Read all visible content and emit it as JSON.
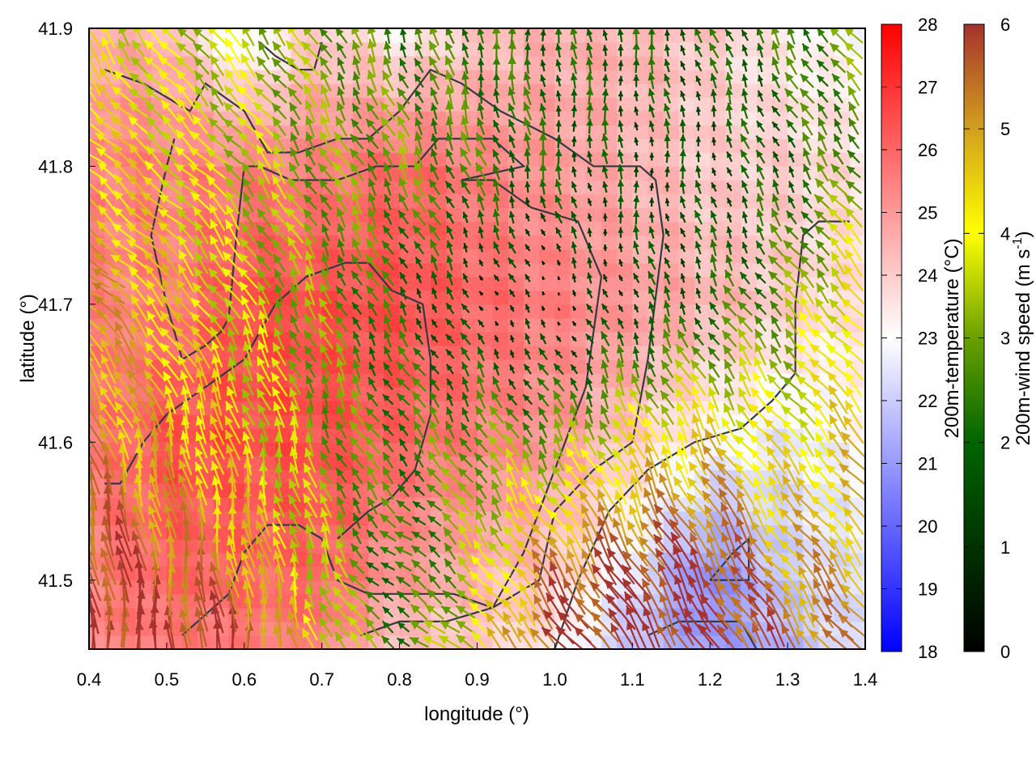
{
  "chart_data": {
    "type": "heatmap",
    "overlay": [
      "vector field",
      "contour lines"
    ],
    "xlabel": "longitude (°)",
    "ylabel": "latitude (°)",
    "xlim": [
      0.4,
      1.4
    ],
    "ylim": [
      41.45,
      41.9
    ],
    "xticks": [
      "0.4",
      "0.5",
      "0.6",
      "0.7",
      "0.8",
      "0.9",
      "1.0",
      "1.1",
      "1.2",
      "1.3",
      "1.4"
    ],
    "yticks": [
      "41.5",
      "41.6",
      "41.7",
      "41.8",
      "41.9"
    ],
    "grid": false,
    "grid_lon": [
      0.4,
      0.5,
      0.6,
      0.7,
      0.8,
      0.9,
      1.0,
      1.1,
      1.2,
      1.3,
      1.4
    ],
    "grid_lat": [
      41.9,
      41.8,
      41.7,
      41.6,
      41.5,
      41.45
    ],
    "temperature": [
      [
        24.5,
        24.5,
        22.5,
        24,
        23.2,
        24,
        24.5,
        24.5,
        24,
        23.2,
        23
      ],
      [
        25.5,
        25.5,
        25.5,
        25.5,
        26,
        25.5,
        25,
        24.5,
        24,
        24,
        23.5
      ],
      [
        25.5,
        25.5,
        26.5,
        26.5,
        26.5,
        26,
        25.5,
        25,
        24.5,
        24,
        23.5
      ],
      [
        25.5,
        26.5,
        26.5,
        26.5,
        26,
        25.5,
        25,
        24,
        23,
        22.5,
        23
      ],
      [
        25.5,
        26,
        26,
        26,
        25,
        24.5,
        24,
        22.5,
        20.5,
        22,
        22.5
      ],
      [
        25.5,
        25.5,
        25.5,
        25.5,
        24,
        24,
        23.5,
        21.5,
        21,
        21.5,
        22.5
      ]
    ],
    "wind_speed": [
      [
        4,
        3.5,
        3.5,
        3,
        2.5,
        2.5,
        2,
        2,
        2,
        2.5,
        3
      ],
      [
        4.5,
        4,
        3.5,
        3,
        3,
        2.5,
        2,
        1.5,
        1.5,
        2,
        3
      ],
      [
        5,
        4.5,
        3.5,
        3,
        2,
        1,
        0.5,
        1.5,
        2,
        3,
        4.5
      ],
      [
        5,
        4.5,
        4,
        3,
        2.5,
        3,
        3,
        4,
        4.5,
        4,
        4.5
      ],
      [
        6,
        5.5,
        5,
        3.5,
        2,
        3.5,
        5.5,
        6,
        6,
        5,
        5
      ],
      [
        6,
        6,
        6,
        4,
        2.5,
        4,
        6,
        6,
        6,
        5.5,
        5
      ]
    ],
    "wind_direction_deg": [
      [
        330,
        320,
        320,
        330,
        340,
        350,
        0,
        350,
        340,
        330,
        320
      ],
      [
        310,
        310,
        320,
        330,
        330,
        340,
        350,
        0,
        350,
        330,
        320
      ],
      [
        310,
        320,
        330,
        335,
        330,
        330,
        330,
        340,
        330,
        320,
        315
      ],
      [
        340,
        345,
        345,
        340,
        320,
        330,
        330,
        335,
        330,
        320,
        320
      ],
      [
        350,
        355,
        350,
        340,
        300,
        320,
        325,
        330,
        330,
        325,
        320
      ],
      [
        355,
        0,
        355,
        340,
        300,
        315,
        320,
        325,
        330,
        325,
        320
      ]
    ],
    "contours": [
      [
        [
          0.42,
          41.87
        ],
        [
          0.47,
          41.86
        ],
        [
          0.5,
          41.85
        ],
        [
          0.53,
          41.84
        ],
        [
          0.55,
          41.86
        ],
        [
          0.6,
          41.84
        ],
        [
          0.63,
          41.81
        ],
        [
          0.67,
          41.81
        ],
        [
          0.72,
          41.82
        ],
        [
          0.76,
          41.82
        ],
        [
          0.8,
          41.84
        ],
        [
          0.84,
          41.87
        ],
        [
          0.88,
          41.86
        ],
        [
          0.93,
          41.84
        ],
        [
          1.0,
          41.82
        ],
        [
          1.05,
          41.8
        ],
        [
          1.11,
          41.8
        ],
        [
          1.13,
          41.79
        ],
        [
          1.14,
          41.75
        ],
        [
          1.12,
          41.66
        ],
        [
          1.1,
          41.6
        ],
        [
          1.05,
          41.58
        ],
        [
          1.0,
          41.55
        ],
        [
          0.98,
          41.5
        ],
        [
          0.92,
          41.48
        ],
        [
          0.87,
          41.49
        ],
        [
          0.84,
          41.49
        ],
        [
          0.8,
          41.49
        ],
        [
          0.76,
          41.49
        ],
        [
          0.72,
          41.5
        ],
        [
          0.7,
          41.53
        ],
        [
          0.67,
          41.54
        ],
        [
          0.63,
          41.54
        ],
        [
          0.6,
          41.52
        ],
        [
          0.58,
          41.49
        ],
        [
          0.54,
          41.47
        ],
        [
          0.52,
          41.46
        ]
      ],
      [
        [
          0.42,
          41.57
        ],
        [
          0.44,
          41.57
        ],
        [
          0.47,
          41.6
        ],
        [
          0.5,
          41.62
        ],
        [
          0.55,
          41.64
        ],
        [
          0.6,
          41.66
        ],
        [
          0.64,
          41.7
        ],
        [
          0.68,
          41.72
        ],
        [
          0.73,
          41.73
        ],
        [
          0.76,
          41.73
        ],
        [
          0.79,
          41.71
        ],
        [
          0.83,
          41.7
        ],
        [
          0.84,
          41.66
        ],
        [
          0.84,
          41.62
        ],
        [
          0.82,
          41.58
        ],
        [
          0.79,
          41.56
        ],
        [
          0.76,
          41.55
        ],
        [
          0.74,
          41.54
        ],
        [
          0.72,
          41.53
        ]
      ],
      [
        [
          0.75,
          41.46
        ],
        [
          0.8,
          41.47
        ],
        [
          0.86,
          41.47
        ],
        [
          0.92,
          41.48
        ],
        [
          0.96,
          41.52
        ],
        [
          1.0,
          41.58
        ],
        [
          1.04,
          41.64
        ],
        [
          1.06,
          41.72
        ],
        [
          1.03,
          41.76
        ],
        [
          0.97,
          41.77
        ],
        [
          0.92,
          41.79
        ],
        [
          0.88,
          41.79
        ],
        [
          0.96,
          41.8
        ],
        [
          0.92,
          41.82
        ],
        [
          0.85,
          41.82
        ],
        [
          0.82,
          41.8
        ],
        [
          0.77,
          41.8
        ],
        [
          0.72,
          41.79
        ],
        [
          0.66,
          41.79
        ],
        [
          0.62,
          41.8
        ],
        [
          0.6,
          41.8
        ],
        [
          0.59,
          41.75
        ],
        [
          0.58,
          41.69
        ],
        [
          0.57,
          41.68
        ],
        [
          0.55,
          41.67
        ],
        [
          0.52,
          41.66
        ],
        [
          0.5,
          41.7
        ],
        [
          0.48,
          41.75
        ],
        [
          0.5,
          41.8
        ],
        [
          0.51,
          41.82
        ]
      ],
      [
        [
          0.62,
          41.89
        ],
        [
          0.64,
          41.88
        ],
        [
          0.67,
          41.87
        ],
        [
          0.69,
          41.87
        ],
        [
          0.7,
          41.89
        ]
      ],
      [
        [
          1.0,
          41.45
        ],
        [
          1.03,
          41.5
        ],
        [
          1.07,
          41.55
        ],
        [
          1.12,
          41.58
        ],
        [
          1.18,
          41.6
        ],
        [
          1.24,
          41.61
        ],
        [
          1.28,
          41.63
        ],
        [
          1.31,
          41.65
        ],
        [
          1.31,
          41.7
        ],
        [
          1.32,
          41.75
        ],
        [
          1.34,
          41.76
        ],
        [
          1.38,
          41.76
        ]
      ],
      [
        [
          1.12,
          41.46
        ],
        [
          1.16,
          41.47
        ],
        [
          1.2,
          41.47
        ],
        [
          1.24,
          41.47
        ],
        [
          1.26,
          41.45
        ]
      ],
      [
        [
          1.2,
          41.5
        ],
        [
          1.25,
          41.5
        ],
        [
          1.25,
          41.53
        ],
        [
          1.23,
          41.52
        ],
        [
          1.2,
          41.5
        ]
      ]
    ],
    "colorbars": [
      {
        "label": "200m-temperature (°C)",
        "range": [
          18,
          28
        ],
        "ticks": [
          "18",
          "19",
          "20",
          "21",
          "22",
          "23",
          "24",
          "25",
          "26",
          "27",
          "28"
        ],
        "colors": [
          "#0000ff",
          "#ffffff",
          "#ff0000"
        ]
      },
      {
        "label_main": "200m-wind speed (m s",
        "label_sup": "-1",
        "label_end": ")",
        "range": [
          0,
          6
        ],
        "ticks": [
          "0",
          "1",
          "2",
          "3",
          "4",
          "5",
          "6"
        ],
        "colors": [
          "#000000",
          "#006400",
          "#ffff00",
          "#d2a01e",
          "#a5322d"
        ]
      }
    ]
  }
}
